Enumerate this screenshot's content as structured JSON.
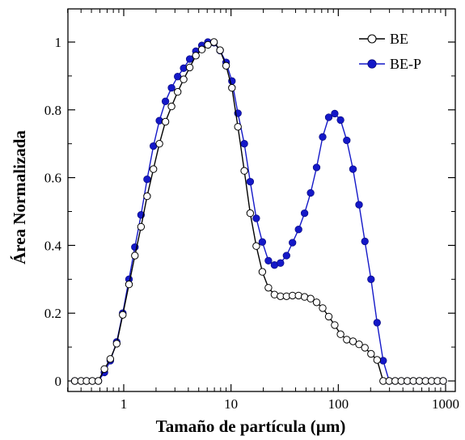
{
  "chart_data": {
    "type": "line",
    "title": "",
    "xlabel": "Tamaño de partícula (µm)",
    "ylabel": "Área Normalizada",
    "x_scale": "log",
    "xlim": [
      0.3,
      1000
    ],
    "ylim": [
      0,
      1.05
    ],
    "x_ticks": [
      1,
      10,
      100,
      1000
    ],
    "x_tick_labels": [
      "1",
      "10",
      "100",
      "1000"
    ],
    "y_ticks": [
      0,
      0.2,
      0.4,
      0.6,
      0.8,
      1
    ],
    "y_tick_labels": [
      "0",
      "0.2",
      "0.4",
      "0.6",
      "0.8",
      "1"
    ],
    "grid": false,
    "legend_position": "top-right",
    "x": [
      0.35,
      0.4,
      0.45,
      0.51,
      0.58,
      0.66,
      0.75,
      0.86,
      0.98,
      1.12,
      1.27,
      1.45,
      1.65,
      1.89,
      2.15,
      2.45,
      2.79,
      3.18,
      3.62,
      4.12,
      4.7,
      5.35,
      6.09,
      6.94,
      7.9,
      9.0,
      10.2,
      11.6,
      13.3,
      15.1,
      17.2,
      19.6,
      22.3,
      25.4,
      28.9,
      32.9,
      37.4,
      42.6,
      48.5,
      55.2,
      62.8,
      71.5,
      81.4,
      92.6,
      105,
      120,
      137,
      156,
      177,
      202,
      230,
      262,
      298,
      339,
      386,
      440,
      500,
      570,
      650,
      740,
      840,
      950
    ],
    "series": [
      {
        "name": "BE",
        "color": "#000000",
        "marker": "open-circle",
        "values": [
          0,
          0,
          0,
          0,
          0,
          0.035,
          0.065,
          0.11,
          0.195,
          0.285,
          0.37,
          0.455,
          0.545,
          0.625,
          0.7,
          0.765,
          0.81,
          0.853,
          0.89,
          0.925,
          0.96,
          0.978,
          0.992,
          1.0,
          0.976,
          0.93,
          0.865,
          0.75,
          0.62,
          0.495,
          0.398,
          0.322,
          0.275,
          0.255,
          0.25,
          0.25,
          0.252,
          0.252,
          0.248,
          0.243,
          0.232,
          0.215,
          0.19,
          0.165,
          0.138,
          0.122,
          0.117,
          0.108,
          0.098,
          0.08,
          0.062,
          0,
          0,
          0,
          0,
          0,
          0,
          0,
          0,
          0,
          0,
          0
        ]
      },
      {
        "name": "BE-P",
        "color": "#1418c8",
        "marker": "filled-circle",
        "values": [
          0,
          0,
          0,
          0,
          0,
          0.025,
          0.06,
          0.115,
          0.2,
          0.3,
          0.395,
          0.49,
          0.595,
          0.693,
          0.768,
          0.825,
          0.865,
          0.898,
          0.923,
          0.95,
          0.973,
          0.99,
          1.0,
          0.998,
          0.975,
          0.94,
          0.885,
          0.79,
          0.7,
          0.588,
          0.48,
          0.41,
          0.355,
          0.342,
          0.348,
          0.37,
          0.408,
          0.447,
          0.495,
          0.555,
          0.63,
          0.72,
          0.778,
          0.789,
          0.77,
          0.71,
          0.625,
          0.52,
          0.412,
          0.3,
          0.172,
          0.06,
          0,
          0,
          0,
          0,
          0,
          0,
          0,
          0,
          0,
          0
        ]
      }
    ]
  }
}
